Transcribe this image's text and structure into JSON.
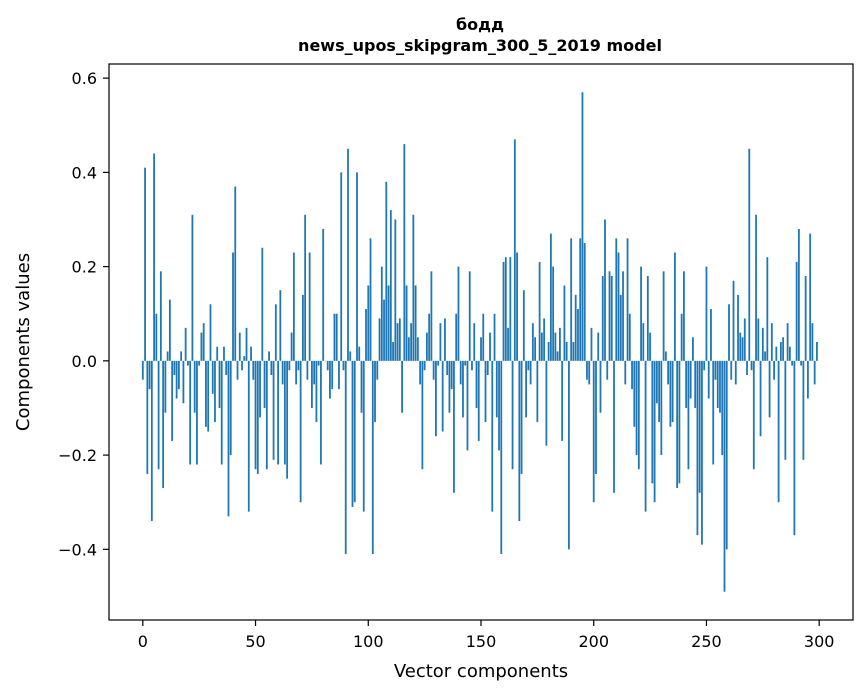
{
  "chart_data": {
    "type": "bar",
    "title_line1": "бодд",
    "title_line2": "news_upos_skipgram_300_5_2019 model",
    "xlabel": "Vector components",
    "ylabel": "Components values",
    "xlim": [
      -15,
      315
    ],
    "ylim": [
      -0.55,
      0.63
    ],
    "xticks": [
      {
        "value": 0,
        "label": "0"
      },
      {
        "value": 50,
        "label": "50"
      },
      {
        "value": 100,
        "label": "100"
      },
      {
        "value": 150,
        "label": "150"
      },
      {
        "value": 200,
        "label": "200"
      },
      {
        "value": 250,
        "label": "250"
      },
      {
        "value": 300,
        "label": "300"
      }
    ],
    "yticks": [
      {
        "value": -0.4,
        "label": "−0.4"
      },
      {
        "value": -0.2,
        "label": "−0.2"
      },
      {
        "value": 0.0,
        "label": "0.0"
      },
      {
        "value": 0.2,
        "label": "0.2"
      },
      {
        "value": 0.4,
        "label": "0.4"
      },
      {
        "value": 0.6,
        "label": "0.6"
      }
    ],
    "grid": false,
    "bar_color": "#1f77b4",
    "values": [
      -0.04,
      0.41,
      -0.24,
      -0.06,
      -0.34,
      0.44,
      0.1,
      -0.23,
      0.19,
      -0.27,
      -0.11,
      0.02,
      0.13,
      -0.17,
      -0.03,
      -0.08,
      -0.06,
      0.02,
      -0.09,
      0.07,
      -0.01,
      -0.22,
      0.31,
      -0.11,
      -0.22,
      -0.01,
      0.06,
      0.08,
      -0.14,
      -0.15,
      0.12,
      -0.07,
      -0.13,
      0.03,
      -0.1,
      -0.22,
      0.03,
      -0.03,
      -0.33,
      -0.2,
      0.23,
      0.37,
      -0.04,
      0.06,
      -0.02,
      0.01,
      0.07,
      -0.32,
      0.03,
      -0.04,
      -0.23,
      -0.24,
      -0.12,
      0.24,
      -0.1,
      -0.23,
      0.02,
      -0.03,
      -0.21,
      0.12,
      -0.22,
      0.15,
      -0.05,
      -0.22,
      -0.25,
      -0.02,
      0.06,
      0.23,
      -0.05,
      -0.02,
      -0.3,
      0.14,
      0.31,
      -0.04,
      0.23,
      -0.1,
      -0.05,
      -0.13,
      -0.01,
      -0.22,
      0.28,
      0.0,
      -0.02,
      -0.08,
      -0.06,
      0.1,
      0.1,
      -0.06,
      0.4,
      -0.02,
      -0.41,
      0.45,
      0.02,
      -0.31,
      -0.3,
      0.4,
      0.03,
      -0.11,
      -0.32,
      0.11,
      0.16,
      0.26,
      -0.41,
      -0.13,
      -0.04,
      0.09,
      0.2,
      0.13,
      0.38,
      0.16,
      0.32,
      0.04,
      0.3,
      0.08,
      0.09,
      -0.11,
      0.46,
      0.16,
      0.05,
      0.08,
      0.31,
      0.16,
      0.05,
      -0.05,
      -0.23,
      -0.02,
      0.06,
      0.1,
      0.19,
      -0.04,
      -0.16,
      -0.01,
      0.08,
      -0.15,
      0.09,
      -0.03,
      -0.11,
      -0.06,
      -0.28,
      0.1,
      0.2,
      -0.05,
      -0.12,
      -0.01,
      -0.19,
      0.19,
      -0.02,
      0.08,
      -0.1,
      -0.17,
      0.05,
      0.1,
      -0.13,
      -0.03,
      0.06,
      -0.32,
      0.1,
      -0.12,
      -0.19,
      -0.41,
      0.21,
      0.22,
      0.07,
      0.22,
      -0.23,
      0.47,
      0.23,
      -0.34,
      -0.24,
      0.15,
      -0.12,
      -0.02,
      -0.05,
      0.08,
      0.05,
      -0.13,
      0.21,
      0.06,
      0.09,
      -0.18,
      0.04,
      0.27,
      0.2,
      0.06,
      0.02,
      0.07,
      -0.17,
      0.16,
      0.04,
      -0.4,
      0.26,
      0.04,
      0.14,
      0.11,
      0.26,
      0.57,
      0.25,
      -0.04,
      -0.05,
      0.07,
      -0.3,
      -0.24,
      0.06,
      -0.11,
      0.18,
      0.3,
      -0.04,
      0.19,
      0.18,
      -0.28,
      0.26,
      0.23,
      0.14,
      0.19,
      -0.05,
      0.26,
      0.1,
      -0.06,
      -0.14,
      -0.2,
      -0.23,
      0.2,
      0.08,
      -0.32,
      0.18,
      0.06,
      -0.26,
      -0.3,
      -0.09,
      -0.13,
      -0.2,
      0.19,
      0.02,
      -0.05,
      -0.14,
      -0.13,
      0.23,
      -0.27,
      -0.26,
      0.1,
      0.19,
      -0.1,
      -0.23,
      -0.08,
      0.05,
      -0.1,
      -0.37,
      -0.28,
      -0.39,
      -0.02,
      0.2,
      -0.08,
      0.11,
      -0.22,
      -0.04,
      -0.1,
      -0.11,
      -0.2,
      -0.49,
      -0.4,
      0.12,
      -0.04,
      0.17,
      -0.05,
      0.14,
      0.06,
      0.05,
      0.09,
      -0.03,
      0.45,
      -0.02,
      -0.23,
      0.31,
      0.09,
      -0.16,
      0.07,
      0.02,
      0.22,
      -0.12,
      0.08,
      -0.04,
      0.03,
      -0.3,
      0.04,
      0.05,
      -0.21,
      0.08,
      0.03,
      -0.01,
      -0.37,
      0.21,
      0.28,
      -0.01,
      -0.21,
      0.18,
      -0.08,
      0.27,
      0.08,
      -0.05,
      0.04
    ]
  }
}
